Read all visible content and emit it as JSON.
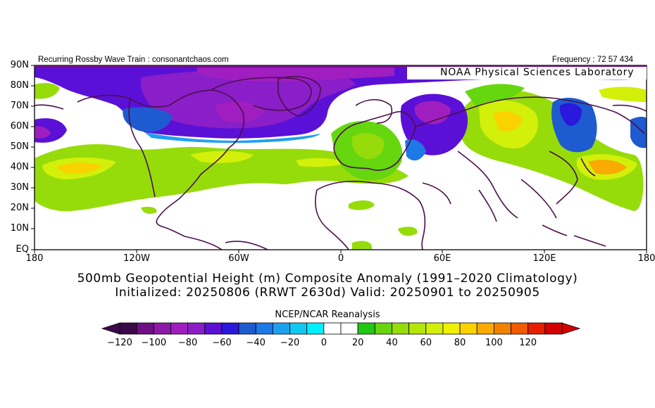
{
  "header": {
    "left_text": "Recurring Rossby Wave Train : consonantchaos.com",
    "right_text": "Frequency : 72 57 434"
  },
  "map": {
    "overlay_label": "NOAA Physical Sciences Laboratory",
    "lat_labels": [
      "90N",
      "80N",
      "70N",
      "60N",
      "50N",
      "40N",
      "30N",
      "20N",
      "10N",
      "EQ"
    ],
    "lon_labels": [
      "180",
      "120W",
      "60W",
      "0",
      "60E",
      "120E",
      "180"
    ]
  },
  "titles": {
    "line1": "500mb Geopotential Height (m) Composite Anomaly (1991–2020 Climatology)",
    "line2": "Initialized: 20250806 (RRWT 2630d) Valid: 20250901 to 20250905"
  },
  "colorbar": {
    "title": "NCEP/NCAR Reanalysis",
    "tick_labels": [
      "−120",
      "−100",
      "−80",
      "−60",
      "−40",
      "−20",
      "0",
      "20",
      "40",
      "60",
      "80",
      "100",
      "120"
    ],
    "colors": [
      "#3c0a4a",
      "#6e0f86",
      "#8c1aa6",
      "#a01ec0",
      "#8a1ec8",
      "#5a10d6",
      "#2a18dc",
      "#1e5ad0",
      "#1e78e6",
      "#1ea0f0",
      "#12c8f0",
      "#00f0ff",
      "#ffffff",
      "#ffffff",
      "#22c814",
      "#66d60e",
      "#96dc0a",
      "#b4e60a",
      "#d2f00a",
      "#f0f000",
      "#fad200",
      "#faaa00",
      "#f08200",
      "#f05a00",
      "#e61e00",
      "#d20000"
    ]
  }
}
